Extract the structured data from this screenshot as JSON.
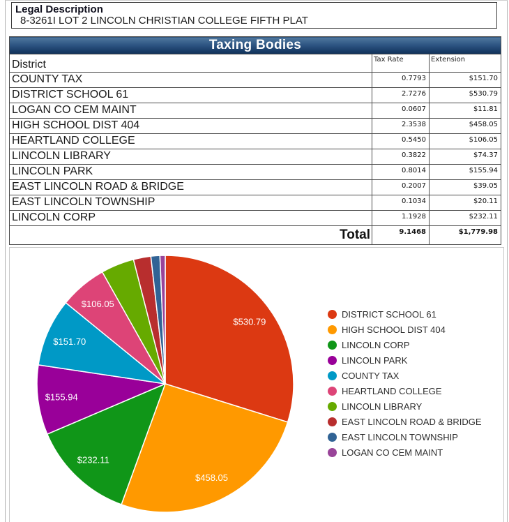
{
  "legal": {
    "title": "Legal Description",
    "value": "8-3261I LOT 2 LINCOLN CHRISTIAN COLLEGE FIFTH PLAT"
  },
  "table": {
    "title": "Taxing Bodies",
    "columns": {
      "district": "District",
      "tax_rate": "Tax Rate",
      "extension": "Extension"
    },
    "rows": [
      {
        "district": "COUNTY TAX",
        "tax_rate": "0.7793",
        "extension": "$151.70"
      },
      {
        "district": "DISTRICT SCHOOL 61",
        "tax_rate": "2.7276",
        "extension": "$530.79"
      },
      {
        "district": "LOGAN CO CEM MAINT",
        "tax_rate": "0.0607",
        "extension": "$11.81"
      },
      {
        "district": "HIGH SCHOOL DIST 404",
        "tax_rate": "2.3538",
        "extension": "$458.05"
      },
      {
        "district": "HEARTLAND COLLEGE",
        "tax_rate": "0.5450",
        "extension": "$106.05"
      },
      {
        "district": "LINCOLN LIBRARY",
        "tax_rate": "0.3822",
        "extension": "$74.37"
      },
      {
        "district": "LINCOLN PARK",
        "tax_rate": "0.8014",
        "extension": "$155.94"
      },
      {
        "district": "EAST LINCOLN ROAD & BRIDGE",
        "tax_rate": "0.2007",
        "extension": "$39.05"
      },
      {
        "district": "EAST LINCOLN TOWNSHIP",
        "tax_rate": "0.1034",
        "extension": "$20.11"
      },
      {
        "district": "LINCOLN CORP",
        "tax_rate": "1.1928",
        "extension": "$232.11"
      }
    ],
    "total": {
      "label": "Total",
      "tax_rate": "9.1468",
      "extension": "$1,779.98"
    }
  },
  "chart_data": {
    "type": "pie",
    "title": "",
    "start_angle_deg": -90,
    "direction": "clockwise",
    "legend_position": "right",
    "label_threshold_percent": 5,
    "total_extension": 1779.98,
    "series": [
      {
        "name": "DISTRICT SCHOOL 61",
        "value": 530.79,
        "label": "$530.79",
        "color": "#dc3912"
      },
      {
        "name": "HIGH SCHOOL DIST 404",
        "value": 458.05,
        "label": "$458.05",
        "color": "#ff9900"
      },
      {
        "name": "LINCOLN CORP",
        "value": 232.11,
        "label": "$232.11",
        "color": "#109618"
      },
      {
        "name": "LINCOLN PARK",
        "value": 155.94,
        "label": "$155.94",
        "color": "#990099"
      },
      {
        "name": "COUNTY TAX",
        "value": 151.7,
        "label": "$151.70",
        "color": "#0099c6"
      },
      {
        "name": "HEARTLAND COLLEGE",
        "value": 106.05,
        "label": "$106.05",
        "color": "#dd4477"
      },
      {
        "name": "LINCOLN LIBRARY",
        "value": 74.37,
        "label": "$74.37",
        "color": "#66aa00"
      },
      {
        "name": "EAST LINCOLN ROAD & BRIDGE",
        "value": 39.05,
        "label": "$39.05",
        "color": "#b82e2e"
      },
      {
        "name": "EAST LINCOLN TOWNSHIP",
        "value": 20.11,
        "label": "$20.11",
        "color": "#316395"
      },
      {
        "name": "LOGAN CO CEM MAINT",
        "value": 11.81,
        "label": "$11.81",
        "color": "#994499"
      }
    ]
  }
}
